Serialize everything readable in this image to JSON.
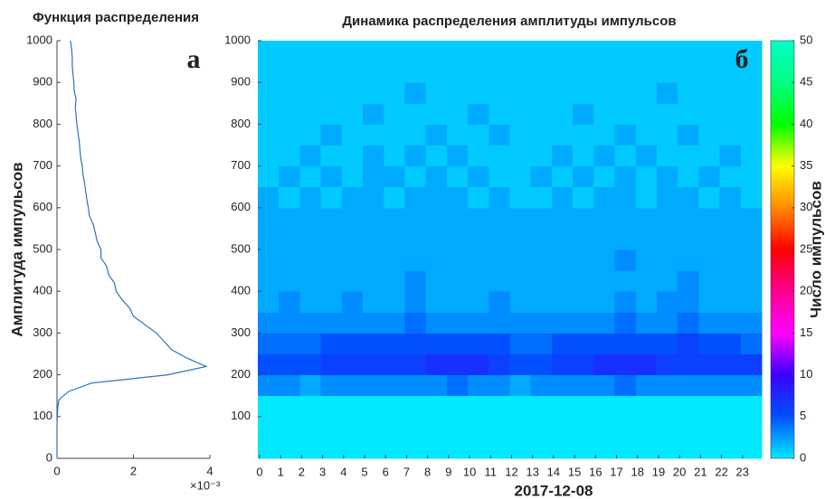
{
  "chart_data": [
    {
      "type": "line",
      "title": "Функция распределения",
      "ylabel": "Амплитуда импульсов",
      "annotation": "а",
      "x_exponent_label": "×10⁻³",
      "color": "#2b74b8",
      "xlim": [
        0,
        4
      ],
      "xticks": [
        0,
        2,
        4
      ],
      "ylim": [
        0,
        1000
      ],
      "yticks": [
        0,
        100,
        200,
        300,
        400,
        500,
        600,
        700,
        800,
        900,
        1000
      ],
      "amplitude": [
        0,
        20,
        40,
        60,
        80,
        100,
        120,
        140,
        160,
        180,
        200,
        220,
        240,
        260,
        280,
        300,
        320,
        340,
        360,
        380,
        400,
        420,
        440,
        460,
        480,
        500,
        520,
        540,
        560,
        580,
        600,
        620,
        640,
        660,
        680,
        700,
        720,
        740,
        760,
        780,
        800,
        820,
        840,
        860,
        880,
        900,
        920,
        940,
        960,
        980,
        1000
      ],
      "values": [
        0,
        0,
        0,
        0,
        0,
        0.01,
        0.02,
        0.05,
        0.3,
        0.9,
        2.9,
        3.9,
        3.4,
        3.0,
        2.8,
        2.6,
        2.3,
        2.0,
        1.9,
        1.7,
        1.55,
        1.5,
        1.35,
        1.3,
        1.15,
        1.15,
        1.05,
        1.0,
        0.95,
        0.85,
        0.82,
        0.78,
        0.75,
        0.72,
        0.68,
        0.66,
        0.62,
        0.6,
        0.58,
        0.55,
        0.52,
        0.5,
        0.48,
        0.5,
        0.45,
        0.44,
        0.42,
        0.4,
        0.4,
        0.38,
        0.35
      ]
    },
    {
      "type": "heatmap",
      "title": "Динамика распределения амплитуды импульсов",
      "xlabel": "2017-12-08",
      "annotation": "б",
      "colorbar_label": "Число импульсов",
      "xlim": [
        0,
        24
      ],
      "xticks": [
        0,
        1,
        2,
        3,
        4,
        5,
        6,
        7,
        8,
        9,
        10,
        11,
        12,
        13,
        14,
        15,
        16,
        17,
        18,
        19,
        20,
        21,
        22,
        23
      ],
      "ylim": [
        0,
        1000
      ],
      "yticks": [
        100,
        200,
        300,
        400,
        500,
        600,
        700,
        800,
        900,
        1000
      ],
      "y_bins": [
        0,
        50,
        100,
        150,
        200,
        250,
        300,
        350,
        400,
        450,
        500,
        550,
        600,
        650,
        700,
        750,
        800,
        850,
        900,
        950,
        1000
      ],
      "clim": [
        0,
        50
      ],
      "cticks": [
        0,
        5,
        10,
        15,
        20,
        25,
        30,
        35,
        40,
        45,
        50
      ],
      "colormap": [
        "#00e8ff",
        "#0050ff",
        "#3a00ff",
        "#ff00ff",
        "#ff0090",
        "#ff0000",
        "#ff8a00",
        "#ffff00",
        "#00ff00",
        "#00ff80",
        "#00ffc8"
      ],
      "values": [
        [
          0,
          0,
          0,
          0,
          0,
          0,
          0,
          0,
          0,
          0,
          0,
          0,
          0,
          0,
          0,
          0,
          0,
          0,
          0,
          0,
          0,
          0,
          0,
          0
        ],
        [
          0,
          0,
          0,
          0,
          0,
          0,
          0,
          0,
          0,
          0,
          0,
          0,
          0,
          0,
          0,
          0,
          0,
          0,
          0,
          0,
          0,
          0,
          0,
          0
        ],
        [
          0,
          0,
          0,
          0,
          0,
          0,
          0,
          0,
          0,
          0,
          0,
          0,
          0,
          0,
          0,
          0,
          0,
          0,
          0,
          0,
          0,
          0,
          0,
          0
        ],
        [
          3,
          3,
          2,
          3,
          3,
          3,
          3,
          3,
          3,
          4,
          3,
          3,
          2,
          3,
          3,
          3,
          3,
          4,
          3,
          3,
          3,
          3,
          3,
          3
        ],
        [
          5,
          5,
          5,
          6,
          6,
          6,
          6,
          6,
          7,
          7,
          7,
          6,
          5,
          5,
          6,
          6,
          7,
          7,
          7,
          6,
          6,
          6,
          6,
          6
        ],
        [
          4,
          4,
          4,
          5,
          5,
          5,
          5,
          5,
          5,
          5,
          5,
          5,
          4,
          4,
          5,
          5,
          5,
          5,
          5,
          5,
          6,
          5,
          5,
          4
        ],
        [
          3,
          3,
          3,
          3,
          3,
          3,
          3,
          4,
          3,
          3,
          3,
          3,
          3,
          3,
          3,
          3,
          3,
          4,
          3,
          3,
          4,
          3,
          3,
          3
        ],
        [
          2,
          3,
          2,
          2,
          3,
          2,
          2,
          3,
          2,
          2,
          2,
          3,
          2,
          2,
          2,
          2,
          2,
          3,
          2,
          3,
          3,
          2,
          2,
          2
        ],
        [
          2,
          2,
          2,
          2,
          2,
          2,
          2,
          3,
          2,
          2,
          2,
          2,
          2,
          2,
          2,
          2,
          2,
          2,
          2,
          2,
          3,
          2,
          2,
          2
        ],
        [
          2,
          2,
          2,
          2,
          2,
          2,
          2,
          2,
          2,
          2,
          2,
          2,
          2,
          2,
          2,
          2,
          2,
          3,
          2,
          2,
          2,
          2,
          2,
          2
        ],
        [
          2,
          2,
          2,
          2,
          2,
          2,
          2,
          2,
          2,
          2,
          2,
          2,
          2,
          2,
          2,
          2,
          2,
          2,
          2,
          2,
          2,
          2,
          2,
          2
        ],
        [
          2,
          2,
          2,
          2,
          2,
          2,
          2,
          2,
          2,
          2,
          2,
          2,
          2,
          2,
          2,
          2,
          2,
          2,
          2,
          2,
          2,
          2,
          2,
          2
        ],
        [
          2,
          1,
          2,
          1,
          2,
          2,
          1,
          2,
          2,
          2,
          1,
          2,
          1,
          1,
          2,
          1,
          2,
          2,
          1,
          2,
          2,
          1,
          2,
          1
        ],
        [
          1,
          2,
          1,
          2,
          1,
          2,
          2,
          1,
          2,
          1,
          2,
          1,
          1,
          2,
          1,
          2,
          1,
          2,
          1,
          2,
          1,
          2,
          1,
          1
        ],
        [
          1,
          1,
          2,
          1,
          1,
          2,
          1,
          2,
          1,
          2,
          1,
          1,
          1,
          1,
          2,
          1,
          2,
          1,
          2,
          1,
          1,
          1,
          2,
          1
        ],
        [
          1,
          1,
          1,
          2,
          1,
          1,
          1,
          1,
          2,
          1,
          1,
          2,
          1,
          1,
          1,
          1,
          1,
          2,
          1,
          1,
          2,
          1,
          1,
          1
        ],
        [
          1,
          1,
          1,
          1,
          1,
          2,
          1,
          1,
          1,
          1,
          2,
          1,
          1,
          1,
          1,
          2,
          1,
          1,
          1,
          1,
          1,
          1,
          1,
          1
        ],
        [
          1,
          1,
          1,
          1,
          1,
          1,
          1,
          2,
          1,
          1,
          1,
          1,
          1,
          1,
          1,
          1,
          1,
          1,
          1,
          2,
          1,
          1,
          1,
          1
        ],
        [
          1,
          1,
          1,
          1,
          1,
          1,
          1,
          1,
          1,
          1,
          1,
          1,
          1,
          1,
          1,
          1,
          1,
          1,
          1,
          1,
          1,
          1,
          1,
          1
        ],
        [
          1,
          1,
          1,
          1,
          1,
          1,
          1,
          1,
          1,
          1,
          1,
          1,
          1,
          1,
          1,
          1,
          1,
          1,
          1,
          1,
          1,
          1,
          1,
          1
        ]
      ]
    }
  ]
}
